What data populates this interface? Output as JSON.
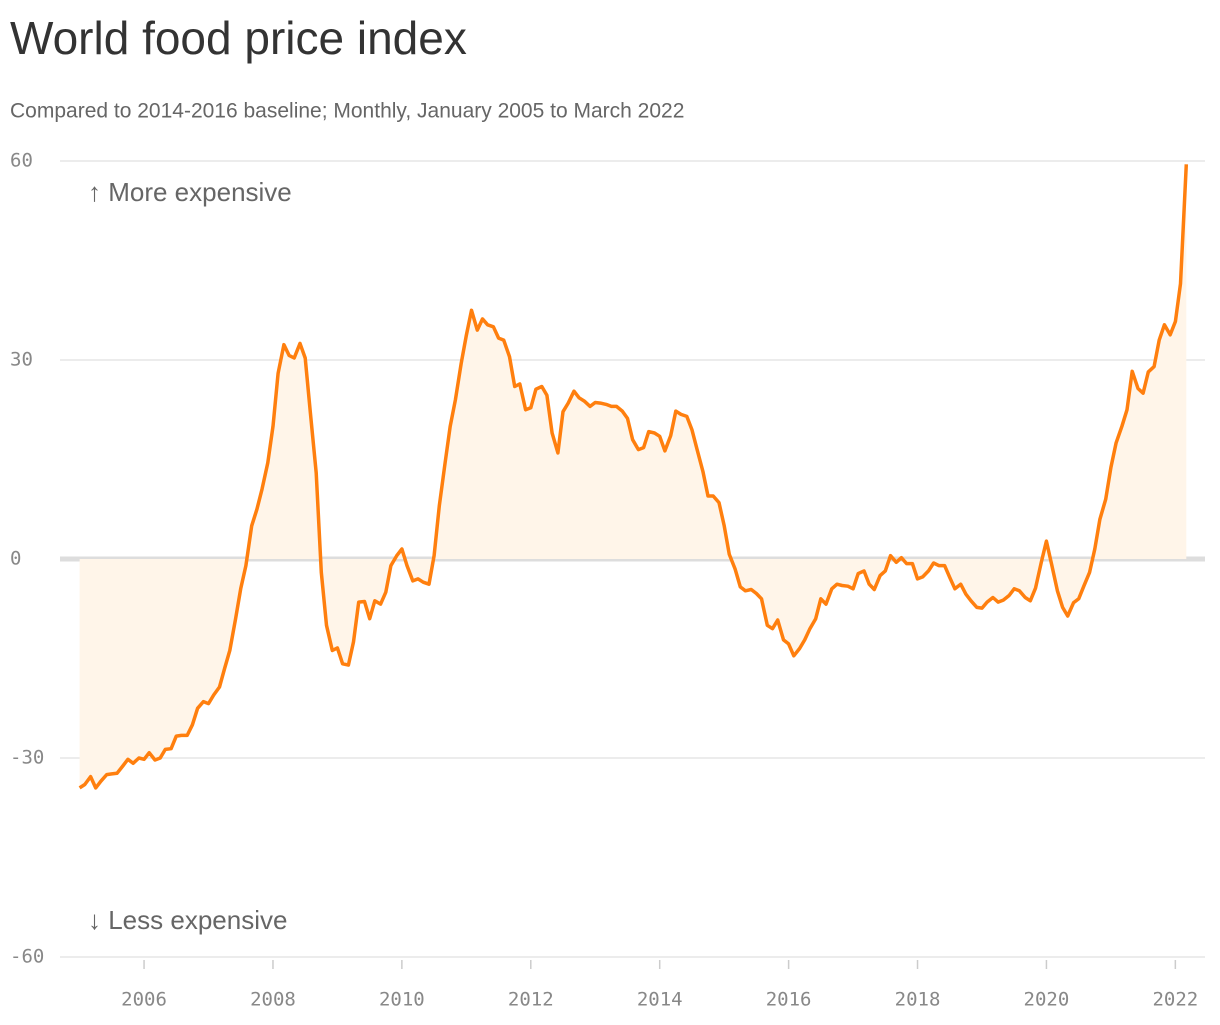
{
  "chart_data": {
    "type": "line",
    "title": "World food price index",
    "subtitle": "Compared to 2014-2016 baseline; Monthly, January 2005 to March 2022",
    "annotations": [
      "↑ More expensive",
      "↓ Less expensive"
    ],
    "x": [
      2005,
      2005.08,
      2005.17,
      2005.25,
      2005.33,
      2005.42,
      2005.5,
      2005.58,
      2005.67,
      2005.75,
      2005.83,
      2005.92,
      2006,
      2006.08,
      2006.17,
      2006.25,
      2006.33,
      2006.42,
      2006.5,
      2006.58,
      2006.67,
      2006.75,
      2006.83,
      2006.92,
      2007,
      2007.08,
      2007.17,
      2007.25,
      2007.33,
      2007.42,
      2007.5,
      2007.58,
      2007.67,
      2007.75,
      2007.83,
      2007.92,
      2008,
      2008.08,
      2008.17,
      2008.25,
      2008.33,
      2008.42,
      2008.5,
      2008.58,
      2008.67,
      2008.75,
      2008.83,
      2008.92,
      2009,
      2009.08,
      2009.17,
      2009.25,
      2009.33,
      2009.42,
      2009.5,
      2009.58,
      2009.67,
      2009.75,
      2009.83,
      2009.92,
      2010,
      2010.08,
      2010.17,
      2010.25,
      2010.33,
      2010.42,
      2010.5,
      2010.58,
      2010.67,
      2010.75,
      2010.83,
      2010.92,
      2011,
      2011.08,
      2011.17,
      2011.25,
      2011.33,
      2011.42,
      2011.5,
      2011.58,
      2011.67,
      2011.75,
      2011.83,
      2011.92,
      2012,
      2012.08,
      2012.17,
      2012.25,
      2012.33,
      2012.42,
      2012.5,
      2012.58,
      2012.67,
      2012.75,
      2012.83,
      2012.92,
      2013,
      2013.08,
      2013.17,
      2013.25,
      2013.33,
      2013.42,
      2013.5,
      2013.58,
      2013.67,
      2013.75,
      2013.83,
      2013.92,
      2014,
      2014.08,
      2014.17,
      2014.25,
      2014.33,
      2014.42,
      2014.5,
      2014.58,
      2014.67,
      2014.75,
      2014.83,
      2014.92,
      2015,
      2015.08,
      2015.17,
      2015.25,
      2015.33,
      2015.42,
      2015.5,
      2015.58,
      2015.67,
      2015.75,
      2015.83,
      2015.92,
      2016,
      2016.08,
      2016.17,
      2016.25,
      2016.33,
      2016.42,
      2016.5,
      2016.58,
      2016.67,
      2016.75,
      2016.83,
      2016.92,
      2017,
      2017.08,
      2017.17,
      2017.25,
      2017.33,
      2017.42,
      2017.5,
      2017.58,
      2017.67,
      2017.75,
      2017.83,
      2017.92,
      2018,
      2018.08,
      2018.17,
      2018.25,
      2018.33,
      2018.42,
      2018.5,
      2018.58,
      2018.67,
      2018.75,
      2018.83,
      2018.92,
      2019,
      2019.08,
      2019.17,
      2019.25,
      2019.33,
      2019.42,
      2019.5,
      2019.58,
      2019.67,
      2019.75,
      2019.83,
      2019.92,
      2020,
      2020.08,
      2020.17,
      2020.25,
      2020.33,
      2020.42,
      2020.5,
      2020.58,
      2020.67,
      2020.75,
      2020.83,
      2020.92,
      2021,
      2021.08,
      2021.17,
      2021.25,
      2021.33,
      2021.42,
      2021.5,
      2021.58,
      2021.67,
      2021.75,
      2021.83,
      2021.92,
      2022,
      2022.08,
      2022.17
    ],
    "values": [
      -34.5,
      -34,
      -32.8,
      -34.5,
      -33.5,
      -32.5,
      -32.4,
      -32.3,
      -31.2,
      -30.2,
      -30.8,
      -30,
      -30.2,
      -29.2,
      -30.3,
      -30,
      -28.7,
      -28.6,
      -26.7,
      -26.6,
      -26.6,
      -25,
      -22.5,
      -21.5,
      -21.8,
      -20.5,
      -19.3,
      -16.5,
      -13.8,
      -9,
      -4.5,
      -1,
      5,
      7.5,
      10.5,
      14.5,
      20,
      28,
      32.3,
      30.7,
      30.3,
      32.5,
      30.3,
      22,
      13,
      -2,
      -10,
      -13.8,
      -13.4,
      -15.8,
      -16,
      -12.5,
      -6.5,
      -6.4,
      -9,
      -6.3,
      -6.8,
      -5,
      -1,
      0.5,
      1.5,
      -1,
      -3.3,
      -3,
      -3.5,
      -3.8,
      0.5,
      8,
      14.5,
      20,
      24,
      29.5,
      33.7,
      37.5,
      34.5,
      36.2,
      35.3,
      35,
      33.3,
      33,
      30.5,
      26,
      26.4,
      22.5,
      22.8,
      25.6,
      26,
      24.7,
      19,
      16,
      22.2,
      23.5,
      25.3,
      24.3,
      23.8,
      23,
      23.6,
      23.5,
      23.3,
      23,
      23,
      22.3,
      21.2,
      18,
      16.5,
      16.8,
      19.2,
      19,
      18.5,
      16.3,
      18.6,
      22.3,
      21.8,
      21.5,
      19.5,
      16.5,
      13.2,
      9.5,
      9.5,
      8.5,
      5,
      0.7,
      -1.5,
      -4.2,
      -4.8,
      -4.6,
      -5.2,
      -6,
      -10,
      -10.5,
      -9.2,
      -12.2,
      -12.8,
      -14.6,
      -13.5,
      -12.2,
      -10.5,
      -9,
      -6,
      -6.8,
      -4.5,
      -3.8,
      -4,
      -4.1,
      -4.5,
      -2.2,
      -1.8,
      -3.8,
      -4.6,
      -2.5,
      -1.8,
      0.5,
      -0.5,
      0.2,
      -0.7,
      -0.7,
      -3,
      -2.7,
      -1.8,
      -0.6,
      -1,
      -1,
      -2.8,
      -4.5,
      -3.8,
      -5.3,
      -6.3,
      -7.3,
      -7.4,
      -6.5,
      -5.8,
      -6.5,
      -6.2,
      -5.5,
      -4.5,
      -4.8,
      -5.8,
      -6.3,
      -4.4,
      -0.5,
      2.7,
      -0.8,
      -4.8,
      -7.3,
      -8.6,
      -6.6,
      -6,
      -4.1,
      -2,
      1.5,
      6,
      9,
      13.8,
      17.5,
      20,
      22.5,
      28.3,
      25.7,
      25,
      28.2,
      29,
      33,
      35.3,
      33.8,
      35.8,
      41.5,
      59.5
    ],
    "color": "#ff7f0e",
    "fill_color": "#fff5e9",
    "xlim": [
      2004.82,
      2022.46
    ],
    "xticks": [
      2006,
      2008,
      2010,
      2012,
      2014,
      2016,
      2018,
      2020,
      2022
    ],
    "ylim": [
      -60,
      60
    ],
    "yticks": [
      -60,
      -30,
      0,
      30,
      60
    ],
    "grid": true
  }
}
